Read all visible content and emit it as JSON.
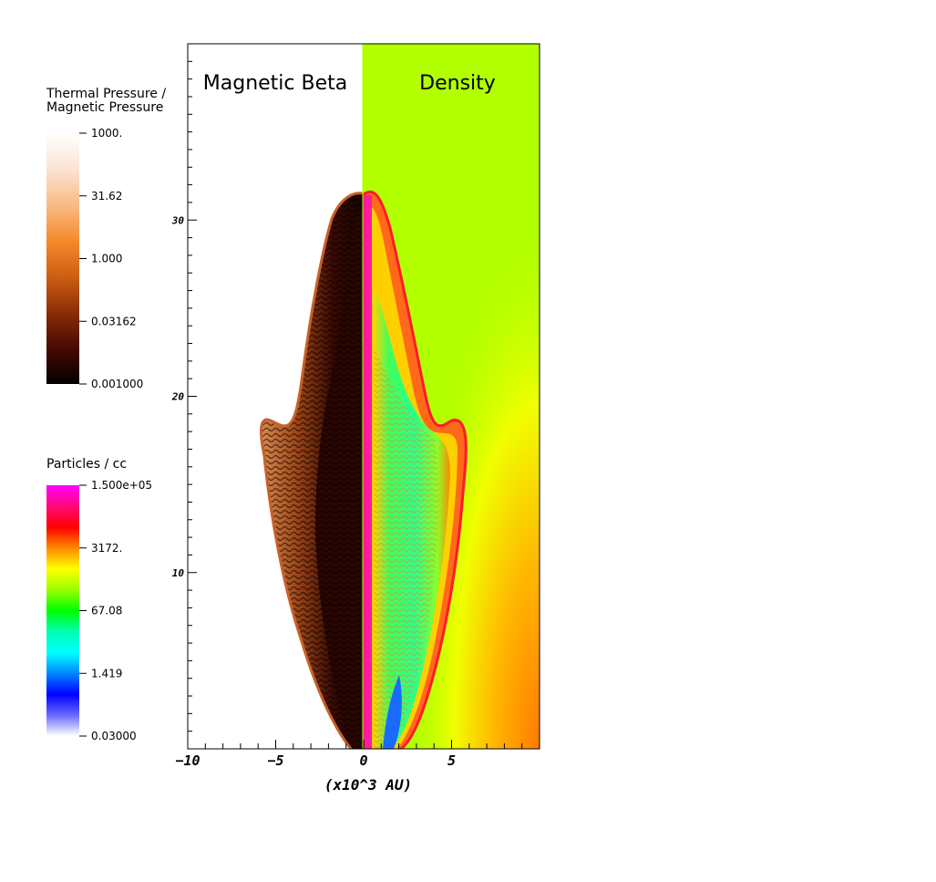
{
  "chart_data": {
    "type": "heatmap",
    "panels": [
      {
        "title": "Magnetic Beta",
        "side": "left"
      },
      {
        "title": "Density",
        "side": "right"
      }
    ],
    "xlabel": "(x10^3 AU)",
    "xlim": [
      -10,
      10
    ],
    "ylim": [
      0,
      40
    ],
    "x_ticks": [
      {
        "value": -10,
        "label": "−10"
      },
      {
        "value": -5,
        "label": "−5"
      },
      {
        "value": 0,
        "label": "0"
      },
      {
        "value": 5,
        "label": "5"
      }
    ],
    "y_ticks": [
      {
        "value": 10,
        "label": "10"
      },
      {
        "value": 20,
        "label": "20"
      },
      {
        "value": 30,
        "label": "30"
      }
    ],
    "colorbars": [
      {
        "title_lines": [
          "Thermal Pressure /",
          "Magnetic Pressure"
        ],
        "scale": "log",
        "range": [
          0.001,
          1000
        ],
        "ticks": [
          "1000.",
          "31.62",
          "1.000",
          "0.03162",
          "0.001000"
        ],
        "colors": [
          "#ffffff",
          "#fbe4d2",
          "#f9bb86",
          "#f58a2c",
          "#ce5f12",
          "#8b2e08",
          "#4a0903",
          "#000000"
        ]
      },
      {
        "title_lines": [
          "Particles / cc"
        ],
        "scale": "log",
        "range": [
          0.03,
          150000
        ],
        "ticks": [
          "1.500e+05",
          "3172.",
          "67.08",
          "1.419",
          "0.03000"
        ],
        "colors": [
          "#ff00ff",
          "#ff0a7a",
          "#ff0000",
          "#ff8800",
          "#ffff00",
          "#99ff00",
          "#00ff00",
          "#00ffb0",
          "#00ffff",
          "#0088ff",
          "#0000ff",
          "#6a6aff",
          "#ffffff"
        ]
      }
    ],
    "colors": {
      "ambient_density": "#b2ff00",
      "shell": "#ff3a1a",
      "jet_axis": "#ff1aa0",
      "interior_density": "#3bff6a",
      "beta_shell": "#b8521e",
      "beta_interior": "#2a0602"
    }
  }
}
